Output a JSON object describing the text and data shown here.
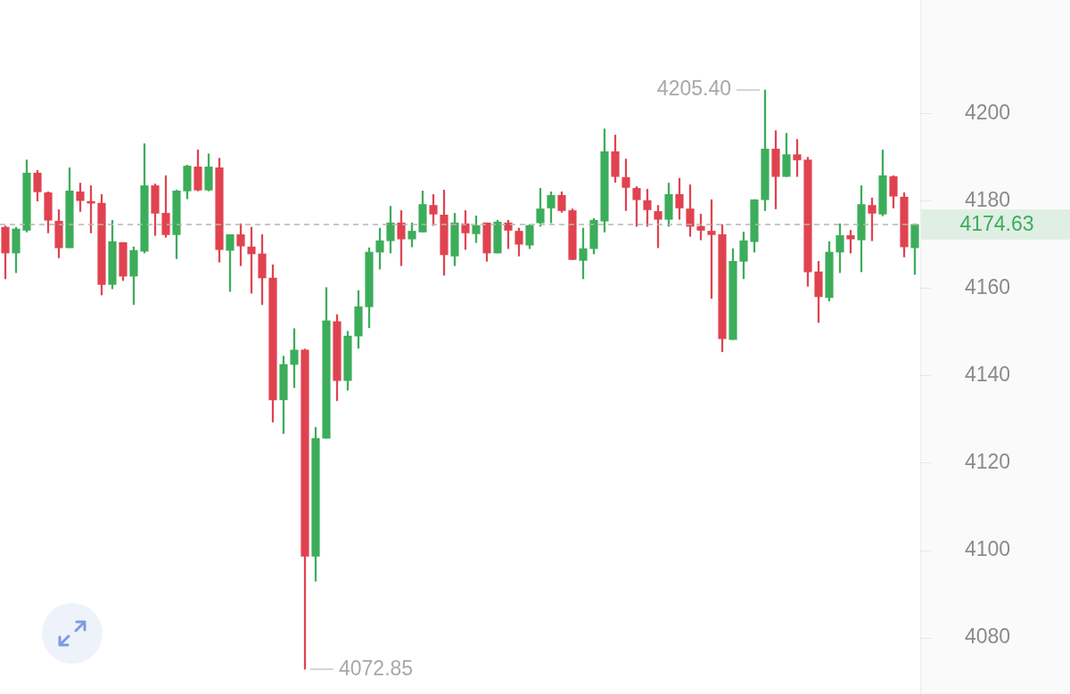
{
  "chart_data": {
    "type": "candlestick",
    "categories": [
      null,
      null,
      null,
      null,
      null,
      null,
      null,
      null,
      null,
      null,
      null,
      null,
      null,
      null,
      null,
      null,
      null,
      null,
      null,
      null,
      null,
      null,
      null,
      null,
      null,
      null,
      null,
      null,
      null,
      null,
      null,
      null,
      null,
      null,
      null,
      null,
      null,
      null,
      null,
      null,
      null,
      null,
      null,
      null,
      null,
      null,
      null,
      null,
      null,
      null,
      null,
      null,
      null,
      null,
      null,
      null,
      null,
      null,
      null,
      null,
      null,
      null,
      null,
      null,
      null,
      null,
      null,
      null,
      null,
      null,
      null,
      null,
      null,
      null,
      null,
      null,
      null,
      null,
      null,
      null,
      null,
      null,
      null,
      null,
      null,
      null
    ],
    "ohlc": [
      [
        4174.0,
        4174.3,
        4162.2,
        4168.1
      ],
      [
        4168.1,
        4174.0,
        4163.6,
        4173.6
      ],
      [
        4173.3,
        4189.4,
        4172.9,
        4186.4
      ],
      [
        4186.4,
        4187.0,
        4180.0,
        4182.1
      ],
      [
        4181.9,
        4182.1,
        4172.7,
        4175.6
      ],
      [
        4175.4,
        4178.0,
        4167.0,
        4169.3
      ],
      [
        4169.3,
        4187.6,
        4169.3,
        4182.3
      ],
      [
        4182.1,
        4184.1,
        4177.6,
        4180.1
      ],
      [
        4179.8,
        4183.5,
        4172.7,
        4179.5
      ],
      [
        4179.5,
        4181.5,
        4158.5,
        4160.9
      ],
      [
        4160.9,
        4175.6,
        4159.9,
        4170.7
      ],
      [
        4170.5,
        4170.5,
        4161.8,
        4162.8
      ],
      [
        4162.8,
        4169.5,
        4156.3,
        4168.7
      ],
      [
        4168.5,
        4193.1,
        4168.1,
        4183.5
      ],
      [
        4183.5,
        4183.9,
        4172.1,
        4177.2
      ],
      [
        4177.2,
        4185.8,
        4171.7,
        4172.3
      ],
      [
        4172.3,
        4182.5,
        4166.8,
        4182.3
      ],
      [
        4182.3,
        4188.2,
        4180.5,
        4188.0
      ],
      [
        4187.8,
        4191.7,
        4182.3,
        4182.5
      ],
      [
        4182.5,
        4190.8,
        4182.3,
        4187.8
      ],
      [
        4187.6,
        4189.8,
        4166.0,
        4168.9
      ],
      [
        4168.7,
        4172.3,
        4159.3,
        4172.3
      ],
      [
        4172.3,
        4174.8,
        4165.2,
        4169.7
      ],
      [
        4169.5,
        4174.0,
        4158.9,
        4167.9
      ],
      [
        4167.9,
        4172.3,
        4156.3,
        4162.4
      ],
      [
        4162.4,
        4165.4,
        4129.4,
        4134.5
      ],
      [
        4134.5,
        4144.5,
        4126.8,
        4142.6
      ],
      [
        4142.6,
        4150.8,
        4137.3,
        4145.9
      ],
      [
        4145.9,
        4146.1,
        4072.85,
        4098.7
      ],
      [
        4098.7,
        4128.2,
        4093.0,
        4125.7
      ],
      [
        4125.7,
        4160.2,
        4125.7,
        4152.6
      ],
      [
        4152.4,
        4154.0,
        4134.3,
        4138.9
      ],
      [
        4138.9,
        4150.2,
        4136.7,
        4149.1
      ],
      [
        4149.1,
        4159.5,
        4146.3,
        4155.8
      ],
      [
        4155.8,
        4169.3,
        4151.0,
        4168.3
      ],
      [
        4168.3,
        4173.8,
        4164.4,
        4170.9
      ],
      [
        4170.9,
        4178.8,
        4168.1,
        4175.0
      ],
      [
        4175.0,
        4177.8,
        4165.2,
        4171.3
      ],
      [
        4171.3,
        4175.0,
        4169.5,
        4173.1
      ],
      [
        4172.9,
        4182.3,
        4172.9,
        4179.2
      ],
      [
        4179.0,
        4181.5,
        4174.4,
        4177.0
      ],
      [
        4176.8,
        4182.5,
        4163.0,
        4167.7
      ],
      [
        4167.4,
        4177.2,
        4165.2,
        4175.0
      ],
      [
        4174.8,
        4177.8,
        4168.9,
        4172.7
      ],
      [
        4172.5,
        4176.6,
        4170.5,
        4174.4
      ],
      [
        4175.0,
        4175.0,
        4166.2,
        4168.1
      ],
      [
        4168.1,
        4175.6,
        4168.1,
        4175.2
      ],
      [
        4175.0,
        4175.6,
        4169.1,
        4173.3
      ],
      [
        4173.1,
        4173.8,
        4167.4,
        4170.1
      ],
      [
        4169.9,
        4174.6,
        4169.1,
        4174.4
      ],
      [
        4175.0,
        4182.9,
        4174.2,
        4178.2
      ],
      [
        4178.4,
        4182.1,
        4175.0,
        4181.3
      ],
      [
        4181.3,
        4182.1,
        4177.4,
        4177.8
      ],
      [
        4177.8,
        4178.2,
        4166.6,
        4166.6
      ],
      [
        4166.4,
        4173.8,
        4162.2,
        4169.1
      ],
      [
        4169.1,
        4176.0,
        4167.9,
        4175.6
      ],
      [
        4175.4,
        4196.5,
        4172.9,
        4191.3
      ],
      [
        4191.3,
        4195.1,
        4184.3,
        4185.6
      ],
      [
        4185.4,
        4189.6,
        4177.8,
        4183.1
      ],
      [
        4182.9,
        4183.3,
        4174.2,
        4180.3
      ],
      [
        4180.1,
        4182.7,
        4174.2,
        4178.0
      ],
      [
        4177.6,
        4179.0,
        4169.3,
        4175.8
      ],
      [
        4175.8,
        4184.1,
        4174.2,
        4181.5
      ],
      [
        4181.5,
        4185.2,
        4175.8,
        4178.4
      ],
      [
        4178.2,
        4183.7,
        4171.9,
        4174.2
      ],
      [
        4174.2,
        4177.0,
        4171.1,
        4173.3
      ],
      [
        4173.1,
        4180.3,
        4157.7,
        4172.3
      ],
      [
        4172.3,
        4174.6,
        4145.5,
        4148.5
      ],
      [
        4148.3,
        4169.1,
        4148.3,
        4166.2
      ],
      [
        4166.2,
        4172.9,
        4162.2,
        4170.9
      ],
      [
        4170.7,
        4180.3,
        4168.3,
        4180.3
      ],
      [
        4180.3,
        4205.4,
        4177.8,
        4191.9
      ],
      [
        4191.9,
        4196.1,
        4178.2,
        4185.6
      ],
      [
        4185.6,
        4195.5,
        4185.6,
        4190.6
      ],
      [
        4190.6,
        4194.1,
        4185.6,
        4189.4
      ],
      [
        4189.4,
        4190.0,
        4160.5,
        4163.8
      ],
      [
        4163.8,
        4166.2,
        4152.2,
        4158.1
      ],
      [
        4157.9,
        4170.7,
        4157.1,
        4168.3
      ],
      [
        4168.3,
        4174.8,
        4163.6,
        4172.1
      ],
      [
        4172.1,
        4173.3,
        4168.1,
        4171.3
      ],
      [
        4171.1,
        4183.5,
        4163.8,
        4179.2
      ],
      [
        4179.0,
        4180.7,
        4170.9,
        4177.2
      ],
      [
        4177.0,
        4191.7,
        4176.6,
        4185.8
      ],
      [
        4185.6,
        4185.8,
        4178.4,
        4181.1
      ],
      [
        4180.9,
        4181.9,
        4167.2,
        4169.5
      ],
      [
        4169.3,
        4174.8,
        4163.2,
        4174.63
      ]
    ],
    "colors": [
      "#e0434f",
      "#3cad5a",
      "#3cad5a",
      "#e0434f",
      "#e0434f",
      "#e0434f",
      "#3cad5a",
      "#e0434f",
      "#e0434f",
      "#e0434f",
      "#3cad5a",
      "#e0434f",
      "#3cad5a",
      "#3cad5a",
      "#e0434f",
      "#e0434f",
      "#3cad5a",
      "#3cad5a",
      "#e0434f",
      "#3cad5a",
      "#e0434f",
      "#3cad5a",
      "#e0434f",
      "#e0434f",
      "#e0434f",
      "#e0434f",
      "#3cad5a",
      "#3cad5a",
      "#e0434f",
      "#3cad5a",
      "#3cad5a",
      "#e0434f",
      "#3cad5a",
      "#3cad5a",
      "#3cad5a",
      "#3cad5a",
      "#3cad5a",
      "#e0434f",
      "#3cad5a",
      "#3cad5a",
      "#e0434f",
      "#e0434f",
      "#3cad5a",
      "#e0434f",
      "#3cad5a",
      "#e0434f",
      "#3cad5a",
      "#e0434f",
      "#e0434f",
      "#3cad5a",
      "#3cad5a",
      "#3cad5a",
      "#e0434f",
      "#e0434f",
      "#3cad5a",
      "#3cad5a",
      "#3cad5a",
      "#e0434f",
      "#e0434f",
      "#e0434f",
      "#e0434f",
      "#e0434f",
      "#3cad5a",
      "#e0434f",
      "#e0434f",
      "#e0434f",
      "#e0434f",
      "#e0434f",
      "#3cad5a",
      "#3cad5a",
      "#3cad5a",
      "#3cad5a",
      "#e0434f",
      "#3cad5a",
      "#e0434f",
      "#e0434f",
      "#e0434f",
      "#3cad5a",
      "#3cad5a",
      "#e0434f",
      "#3cad5a",
      "#e0434f",
      "#3cad5a",
      "#e0434f",
      "#e0434f",
      "#3cad5a"
    ],
    "ylim": [
      4068,
      4226
    ],
    "yticks": [
      4080,
      4100,
      4120,
      4140,
      4160,
      4180,
      4200
    ],
    "annotations": [
      "4205.40",
      "4072.85"
    ],
    "ref_lines": [
      {
        "axis": "y",
        "value": 4174.63,
        "label": "4174.63",
        "color": "#b5b5b5",
        "line_style": "dashed"
      }
    ]
  }
}
